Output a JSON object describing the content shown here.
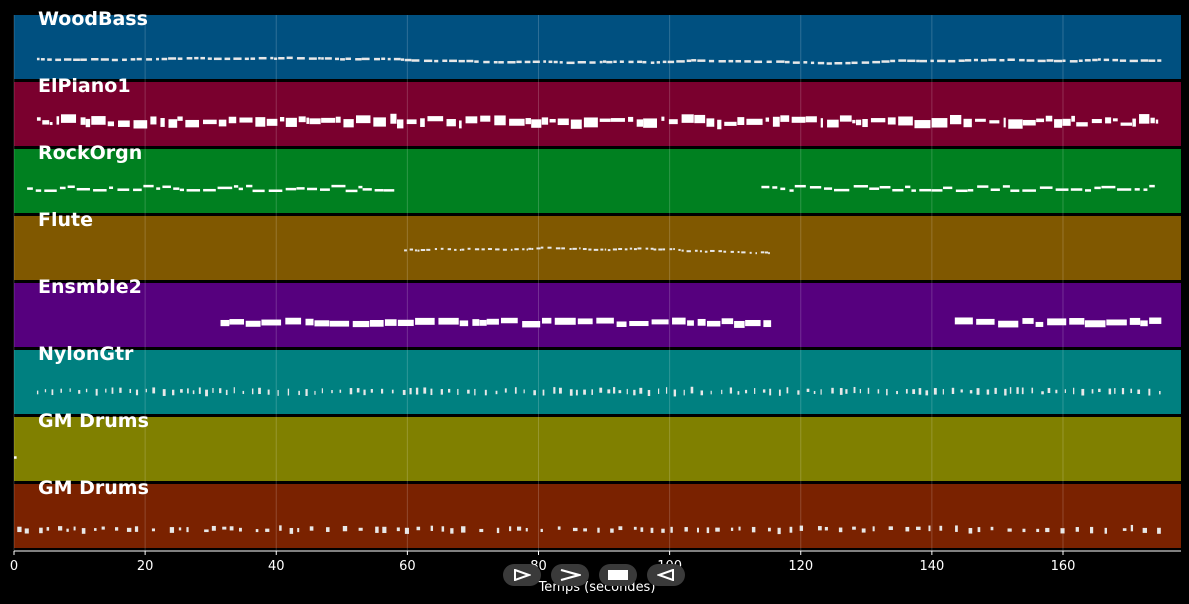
{
  "chart_data": {
    "type": "piano-roll",
    "xlabel": "Temps (secondes)",
    "xlim": [
      0,
      178
    ],
    "xticks": [
      0,
      20,
      40,
      60,
      80,
      100,
      120,
      140,
      160
    ],
    "grid": true,
    "tracks": [
      {
        "name": "WoodBass",
        "color": "#005080",
        "note_color": "#e8e8e8",
        "style": "bass",
        "segments": [
          [
            3.5,
            175
          ]
        ]
      },
      {
        "name": "ElPiano1",
        "color": "#7a002e",
        "note_color": "#ffffff",
        "style": "chords",
        "segments": [
          [
            3.5,
            175
          ]
        ]
      },
      {
        "name": "RockOrgn",
        "color": "#008020",
        "note_color": "#ffffff",
        "style": "line",
        "segments": [
          [
            2,
            58
          ],
          [
            114,
            174
          ]
        ]
      },
      {
        "name": "Flute",
        "color": "#805800",
        "note_color": "#e8e8e8",
        "style": "melody",
        "segments": [
          [
            59.5,
            115.5
          ]
        ]
      },
      {
        "name": "Ensmble2",
        "color": "#56007e",
        "note_color": "#ffffff",
        "style": "pad",
        "segments": [
          [
            31.5,
            115.5
          ],
          [
            143.5,
            175
          ]
        ]
      },
      {
        "name": "NylonGtr",
        "color": "#008080",
        "note_color": "#e8e8e8",
        "style": "strum",
        "segments": [
          [
            3.5,
            175
          ]
        ]
      },
      {
        "name": "GM Drums",
        "color": "#808000",
        "note_color": "#ffffff",
        "style": "single",
        "segments": [
          [
            0,
            0.5
          ]
        ]
      },
      {
        "name": "GM Drums",
        "color": "#7a2200",
        "note_color": "#e8e8e8",
        "style": "drums",
        "segments": [
          [
            0.5,
            175
          ]
        ]
      }
    ]
  },
  "controls": {
    "play_icon": "play-outline-icon",
    "forward_icon": "chevron-right-icon",
    "stop_icon": "stop-icon",
    "back_icon": "back-triangle-icon"
  }
}
